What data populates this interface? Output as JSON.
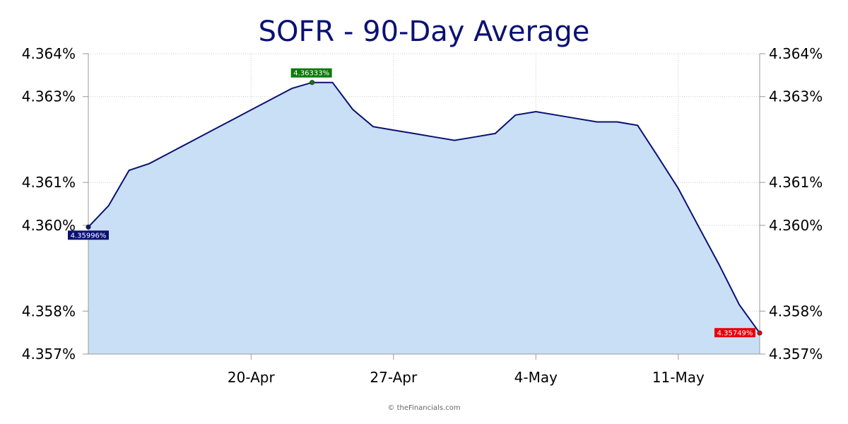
{
  "chart_data": {
    "type": "area",
    "title": "SOFR - 90-Day Average",
    "xlabel": "",
    "ylabel": "",
    "x": [
      "2024-04-12",
      "2024-04-13",
      "2024-04-14",
      "2024-04-15",
      "2024-04-16",
      "2024-04-17",
      "2024-04-18",
      "2024-04-19",
      "2024-04-20",
      "2024-04-21",
      "2024-04-22",
      "2024-04-23",
      "2024-04-24",
      "2024-04-25",
      "2024-04-26",
      "2024-04-27",
      "2024-04-28",
      "2024-04-29",
      "2024-04-30",
      "2024-05-01",
      "2024-05-02",
      "2024-05-03",
      "2024-05-04",
      "2024-05-05",
      "2024-05-06",
      "2024-05-07",
      "2024-05-08",
      "2024-05-09",
      "2024-05-10",
      "2024-05-11",
      "2024-05-12",
      "2024-05-13",
      "2024-05-14",
      "2024-05-15"
    ],
    "values": [
      4.35996,
      4.36046,
      4.36128,
      4.36144,
      4.36169,
      4.36194,
      4.36219,
      4.36244,
      4.36269,
      4.36294,
      4.36319,
      4.36333,
      4.36333,
      4.3627,
      4.3623,
      4.36222,
      4.36214,
      4.36206,
      4.36198,
      4.36206,
      4.36214,
      4.36257,
      4.36265,
      4.36257,
      4.36249,
      4.36241,
      4.36241,
      4.36233,
      4.3616,
      4.36086,
      4.35997,
      4.35909,
      4.35815,
      4.35749
    ],
    "first_label": "4.35996%",
    "max_label": "4.36333%",
    "last_label": "4.35749%",
    "ylim": [
      4.357,
      4.364
    ],
    "y_ticks": [
      4.357,
      4.358,
      4.36,
      4.361,
      4.363,
      4.364
    ],
    "y_tick_labels": [
      "4.357%",
      "4.358%",
      "4.360%",
      "4.361%",
      "4.363%",
      "4.364%"
    ],
    "x_ticks": [
      "2024-04-20",
      "2024-04-27",
      "2024-05-04",
      "2024-05-11"
    ],
    "x_tick_labels": [
      "20-Apr",
      "27-Apr",
      "4-May",
      "11-May"
    ],
    "grid": true,
    "line_color": "#0a1173",
    "fill_color": "#c9dff5",
    "max_color": "#0d7a0d",
    "first_color": "#0a1173",
    "last_color": "#e8000b"
  },
  "credit": "© theFinancials.com"
}
